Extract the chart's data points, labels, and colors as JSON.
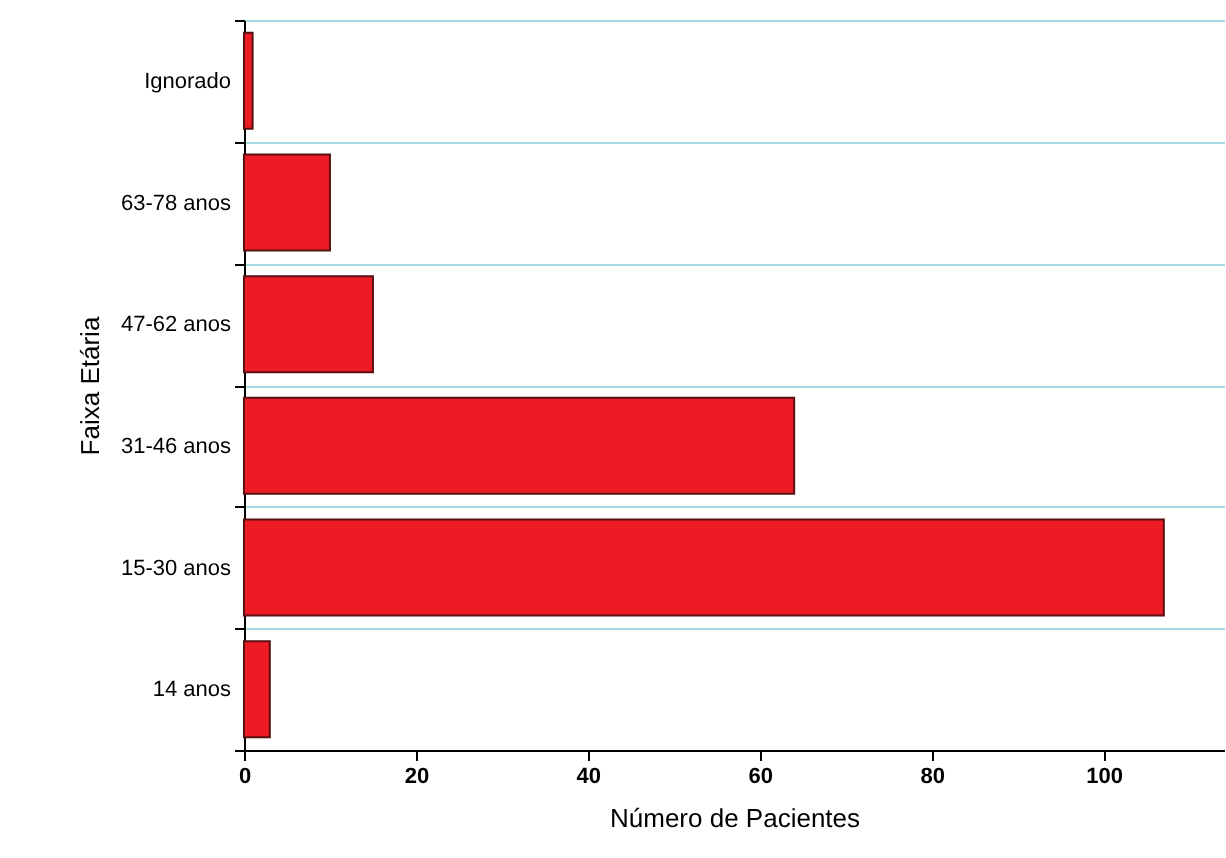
{
  "chart_data": {
    "type": "bar",
    "orientation": "horizontal",
    "xlabel": "Número de Pacientes",
    "ylabel": "Faixa Etária",
    "categories": [
      "Ignorado",
      "63-78 anos",
      "47-62 anos",
      "31-46 anos",
      "15-30 anos",
      "14 anos"
    ],
    "values": [
      1,
      10,
      15,
      64,
      107,
      3
    ],
    "color": "#ed1c24",
    "xlim": [
      0,
      114
    ],
    "xticks": [
      0,
      20,
      40,
      60,
      80,
      100
    ],
    "grid": "y"
  }
}
